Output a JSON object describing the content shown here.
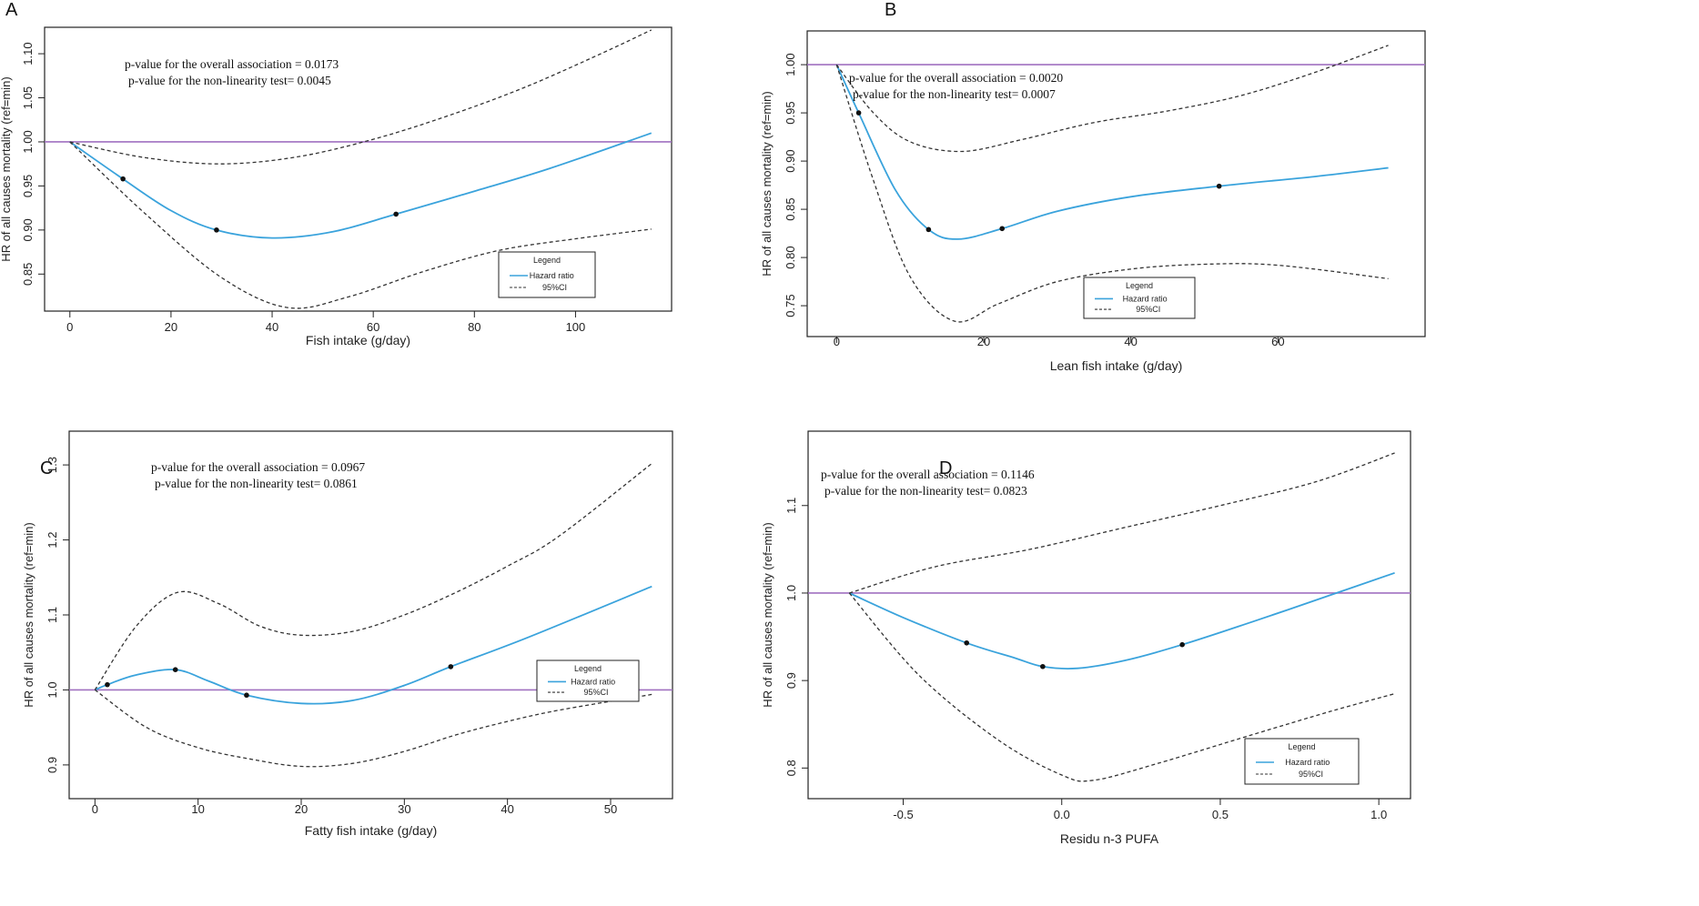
{
  "colors": {
    "hr": "#3aa3dc",
    "ci": "#333333",
    "ref": "#a070c0",
    "point": "#111111",
    "frame": "#222222"
  },
  "chart_data": [
    {
      "panel": "A",
      "type": "line",
      "xlabel": "Fish intake (g/day)",
      "ylabel": "HR of all causes mortality (ref=min)",
      "xlim": [
        -5,
        119
      ],
      "ylim": [
        0.808,
        1.13
      ],
      "xticks": [
        0,
        20,
        40,
        60,
        80,
        100
      ],
      "yticks": [
        0.85,
        0.9,
        0.95,
        1.0,
        1.05,
        1.1
      ],
      "ytick_labels": [
        "0.85",
        "0.90",
        "0.95",
        "1.00",
        "1.05",
        "1.10"
      ],
      "xtick_labels": [
        "0",
        "20",
        "40",
        "60",
        "80",
        "100"
      ],
      "ref_line": 1.0,
      "p_overall": "p-value for the overall association = 0.0173",
      "p_nonlinear": "p-value for the non-linearity test= 0.0045",
      "legend": {
        "title": "Legend",
        "hr": "Hazard ratio",
        "ci": "95%CI"
      },
      "series": [
        {
          "name": "Hazard ratio",
          "x": [
            0,
            10.5,
            20,
            29,
            40,
            52,
            64.5,
            80,
            95,
            115
          ],
          "y": [
            1.0,
            0.958,
            0.922,
            0.9,
            0.891,
            0.898,
            0.918,
            0.944,
            0.97,
            1.01
          ]
        },
        {
          "name": "95%CI upper",
          "x": [
            0,
            15,
            30,
            45,
            60,
            75,
            90,
            105,
            115
          ],
          "y": [
            1.0,
            0.982,
            0.975,
            0.983,
            1.003,
            1.03,
            1.062,
            1.1,
            1.127
          ]
        },
        {
          "name": "95%CI lower",
          "x": [
            0,
            15,
            30,
            43,
            55,
            70,
            85,
            100,
            115
          ],
          "y": [
            1.0,
            0.918,
            0.846,
            0.812,
            0.824,
            0.853,
            0.877,
            0.89,
            0.901
          ]
        }
      ],
      "knots": {
        "x": [
          10.5,
          29,
          64.5
        ],
        "y": [
          0.958,
          0.9,
          0.918
        ]
      }
    },
    {
      "panel": "B",
      "type": "line",
      "xlabel": "Lean fish intake (g/day)",
      "ylabel": "HR of all causes mortality (ref=min)",
      "xlim": [
        -4,
        80
      ],
      "ylim": [
        0.718,
        1.035
      ],
      "xticks": [
        0,
        20,
        40,
        60
      ],
      "yticks": [
        0.75,
        0.8,
        0.85,
        0.9,
        0.95,
        1.0
      ],
      "ytick_labels": [
        "0.75",
        "0.80",
        "0.85",
        "0.90",
        "0.95",
        "1.00"
      ],
      "xtick_labels": [
        "0",
        "20",
        "40",
        "60"
      ],
      "ref_line": 1.0,
      "p_overall": "p-value for the overall association = 0.0020",
      "p_nonlinear": "p-value for the non-linearity test= 0.0007",
      "legend": {
        "title": "Legend",
        "hr": "Hazard ratio",
        "ci": "95%CI"
      },
      "series": [
        {
          "name": "Hazard ratio",
          "x": [
            0,
            3,
            8,
            12.5,
            16.5,
            22.5,
            30,
            40,
            52,
            65,
            75
          ],
          "y": [
            1.0,
            0.95,
            0.87,
            0.829,
            0.819,
            0.83,
            0.848,
            0.863,
            0.874,
            0.884,
            0.893
          ]
        },
        {
          "name": "95%CI upper",
          "x": [
            0,
            5,
            10,
            17,
            25,
            35,
            45,
            55,
            65,
            75
          ],
          "y": [
            1.0,
            0.95,
            0.92,
            0.91,
            0.922,
            0.94,
            0.952,
            0.968,
            0.992,
            1.02
          ]
        },
        {
          "name": "95%CI lower",
          "x": [
            0,
            5,
            10,
            16,
            22,
            30,
            40,
            50,
            60,
            75
          ],
          "y": [
            1.0,
            0.88,
            0.78,
            0.734,
            0.752,
            0.775,
            0.788,
            0.793,
            0.792,
            0.778
          ]
        }
      ],
      "knots": {
        "x": [
          3,
          12.5,
          22.5,
          52
        ],
        "y": [
          0.95,
          0.829,
          0.83,
          0.874
        ]
      }
    },
    {
      "panel": "C",
      "type": "line",
      "xlabel": "Fatty fish intake (g/day)",
      "ylabel": "HR of all causes mortality (ref=min)",
      "xlim": [
        -2.5,
        56
      ],
      "ylim": [
        0.855,
        1.345
      ],
      "xticks": [
        0,
        10,
        20,
        30,
        40,
        50
      ],
      "yticks": [
        0.9,
        1.0,
        1.1,
        1.2,
        1.3
      ],
      "ytick_labels": [
        "0.9",
        "1.0",
        "1.1",
        "1.2",
        "1.3"
      ],
      "xtick_labels": [
        "0",
        "10",
        "20",
        "30",
        "40",
        "50"
      ],
      "ref_line": 1.0,
      "p_overall": "p-value for the overall association = 0.0967",
      "p_nonlinear": "p-value for the non-linearity test= 0.0861",
      "legend": {
        "title": "Legend",
        "hr": "Hazard ratio",
        "ci": "95%CI"
      },
      "series": [
        {
          "name": "Hazard ratio",
          "x": [
            0,
            1.2,
            4,
            7.8,
            11,
            14.7,
            20,
            25,
            30,
            34.5,
            42,
            54
          ],
          "y": [
            1.0,
            1.007,
            1.02,
            1.027,
            1.012,
            0.993,
            0.982,
            0.986,
            1.006,
            1.031,
            1.07,
            1.138
          ]
        },
        {
          "name": "95%CI upper",
          "x": [
            0,
            4,
            8,
            12,
            16,
            20,
            25,
            30,
            35,
            40,
            45,
            54
          ],
          "y": [
            1.0,
            1.085,
            1.13,
            1.115,
            1.085,
            1.073,
            1.078,
            1.1,
            1.13,
            1.165,
            1.205,
            1.302
          ]
        },
        {
          "name": "95%CI lower",
          "x": [
            0,
            5,
            10,
            15,
            20,
            25,
            30,
            35,
            40,
            45,
            54
          ],
          "y": [
            1.0,
            0.95,
            0.923,
            0.908,
            0.898,
            0.902,
            0.918,
            0.94,
            0.958,
            0.973,
            0.994
          ]
        }
      ],
      "knots": {
        "x": [
          1.2,
          7.8,
          14.7,
          34.5
        ],
        "y": [
          1.007,
          1.027,
          0.993,
          1.031
        ]
      }
    },
    {
      "panel": "D",
      "type": "line",
      "xlabel": "Residu n-3 PUFA",
      "ylabel": "HR of all causes mortality (ref=min)",
      "xlim": [
        -0.8,
        1.1
      ],
      "ylim": [
        0.765,
        1.185
      ],
      "xticks": [
        -0.5,
        0.0,
        0.5,
        1.0
      ],
      "yticks": [
        0.8,
        0.9,
        1.0,
        1.1
      ],
      "ytick_labels": [
        "0.8",
        "0.9",
        "1.0",
        "1.1"
      ],
      "xtick_labels": [
        "-0.5",
        "0.0",
        "0.5",
        "1.0"
      ],
      "ref_line": 1.0,
      "p_overall": "p-value for the overall association = 0.1146",
      "p_nonlinear": "p-value for the non-linearity test= 0.0823",
      "legend": {
        "title": "Legend",
        "hr": "Hazard ratio",
        "ci": "95%CI"
      },
      "series": [
        {
          "name": "Hazard ratio",
          "x": [
            -0.67,
            -0.5,
            -0.3,
            -0.15,
            -0.06,
            0.05,
            0.2,
            0.38,
            0.6,
            0.85,
            1.05
          ],
          "y": [
            1.0,
            0.972,
            0.943,
            0.926,
            0.916,
            0.914,
            0.923,
            0.941,
            0.967,
            0.998,
            1.023
          ]
        },
        {
          "name": "95%CI upper",
          "x": [
            -0.67,
            -0.4,
            -0.1,
            0.2,
            0.5,
            0.8,
            1.05
          ],
          "y": [
            1.0,
            1.03,
            1.05,
            1.075,
            1.1,
            1.127,
            1.16
          ]
        },
        {
          "name": "95%CI lower",
          "x": [
            -0.67,
            -0.45,
            -0.2,
            0.0,
            0.1,
            0.3,
            0.6,
            0.85,
            1.05
          ],
          "y": [
            1.0,
            0.906,
            0.832,
            0.792,
            0.786,
            0.805,
            0.838,
            0.865,
            0.885
          ]
        }
      ],
      "knots": {
        "x": [
          -0.3,
          -0.06,
          0.38
        ],
        "y": [
          0.943,
          0.916,
          0.941
        ]
      }
    }
  ]
}
